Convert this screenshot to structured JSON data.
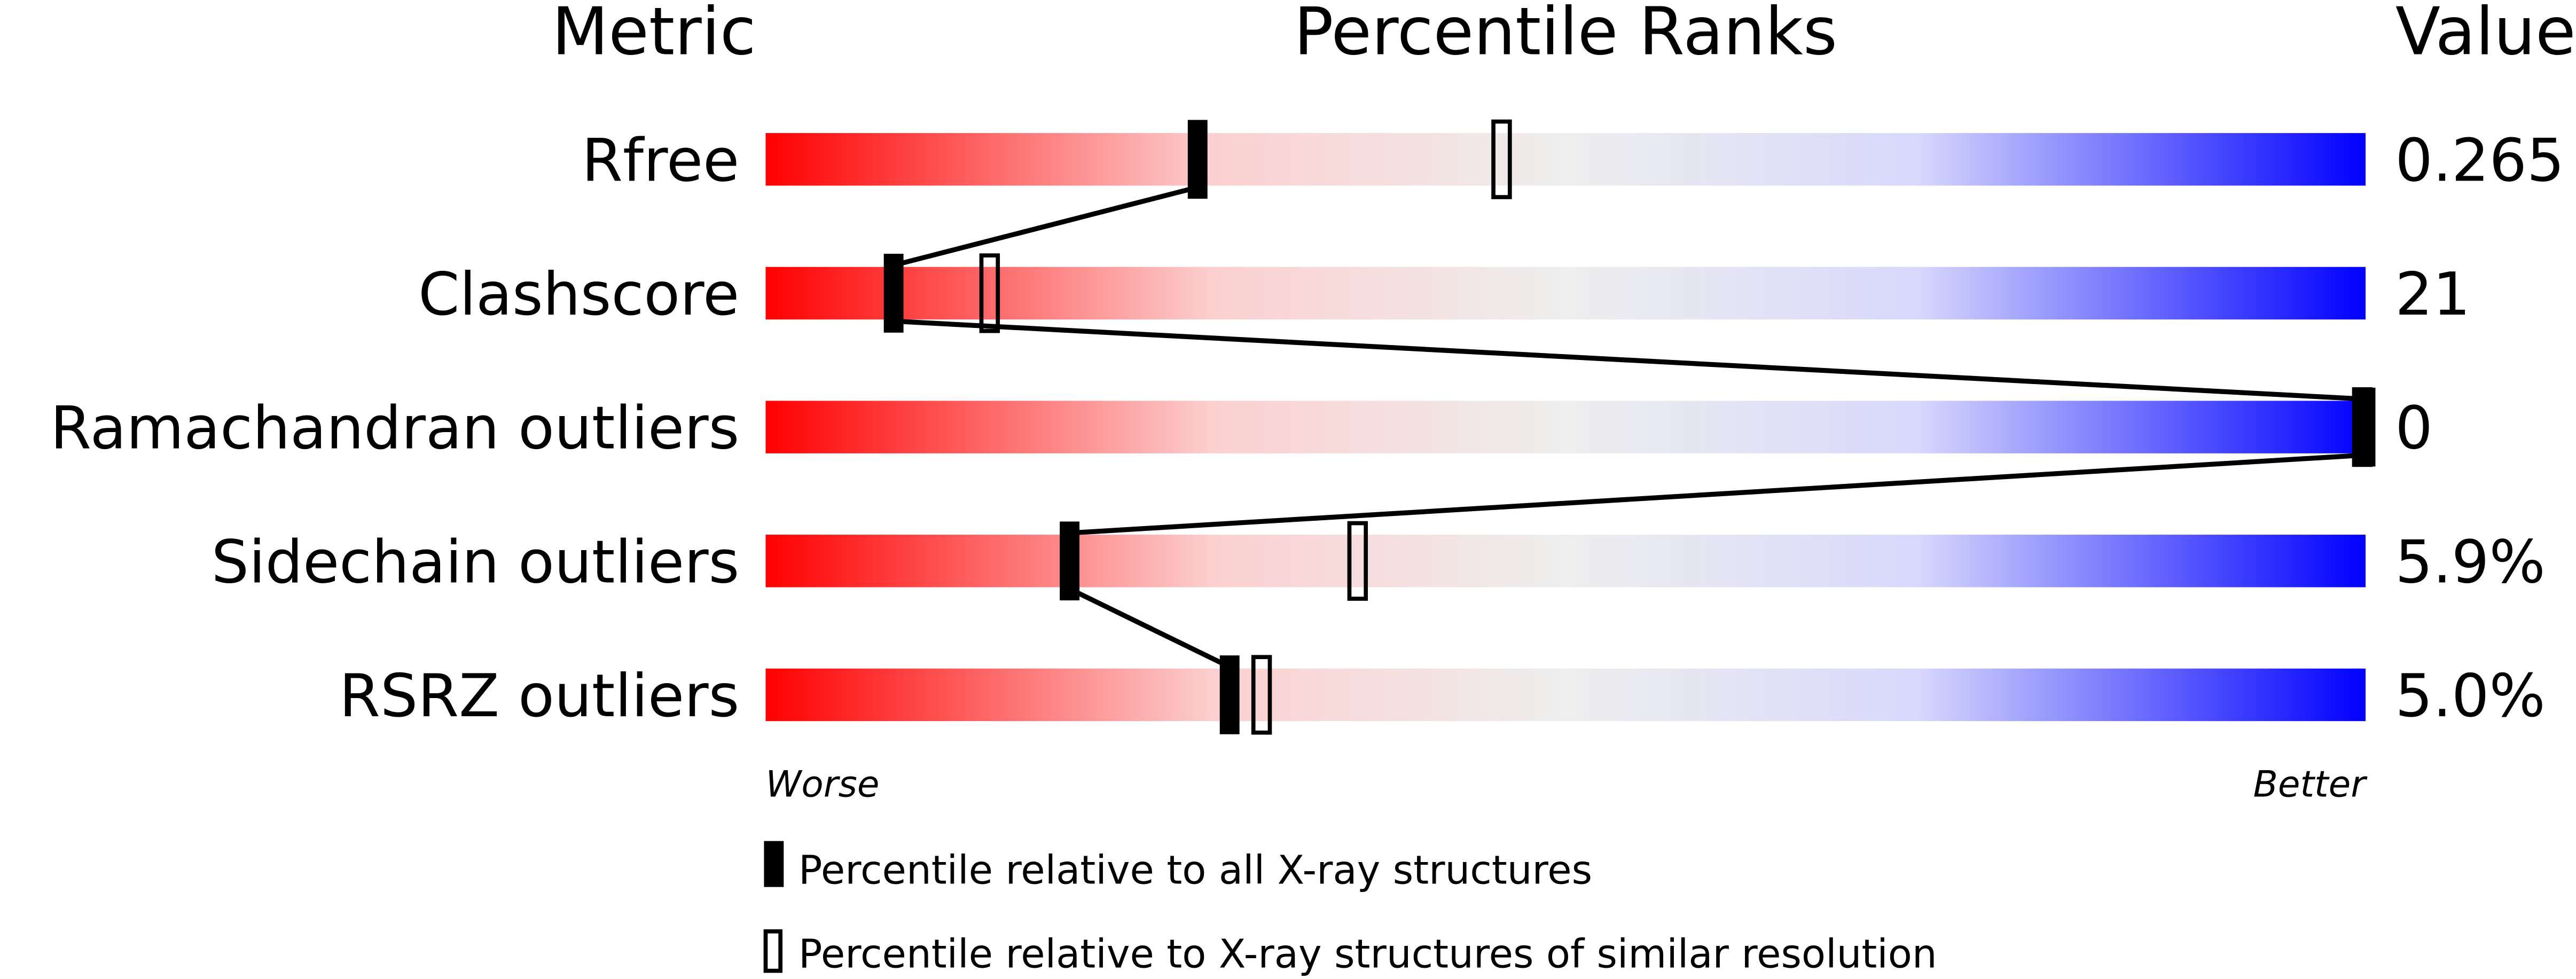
{
  "chart_data": {
    "type": "percentile-slider",
    "headers": {
      "metric": "Metric",
      "percentile": "Percentile Ranks",
      "value": "Value"
    },
    "xlim": [
      0,
      100
    ],
    "axis_labels": {
      "left": "Worse",
      "right": "Better"
    },
    "gradient_colors": [
      "#ff0000",
      "#fcd0d0",
      "#eeeeee",
      "#d8d8fc",
      "#0000ff"
    ],
    "rows": [
      {
        "metric": "Rfree",
        "value": "0.265",
        "percentile_all": 27,
        "percentile_similar": 46
      },
      {
        "metric": "Clashscore",
        "value": "21",
        "percentile_all": 8,
        "percentile_similar": 14
      },
      {
        "metric": "Ramachandran outliers",
        "value": "0",
        "percentile_all": 100,
        "percentile_similar": 100
      },
      {
        "metric": "Sidechain outliers",
        "value": "5.9%",
        "percentile_all": 19,
        "percentile_similar": 37
      },
      {
        "metric": "RSRZ outliers",
        "value": "5.0%",
        "percentile_all": 29,
        "percentile_similar": 31
      }
    ],
    "legend": [
      {
        "marker": "filled",
        "label": "Percentile relative to all X-ray structures"
      },
      {
        "marker": "open",
        "label": "Percentile relative to X-ray structures of similar resolution"
      }
    ]
  }
}
